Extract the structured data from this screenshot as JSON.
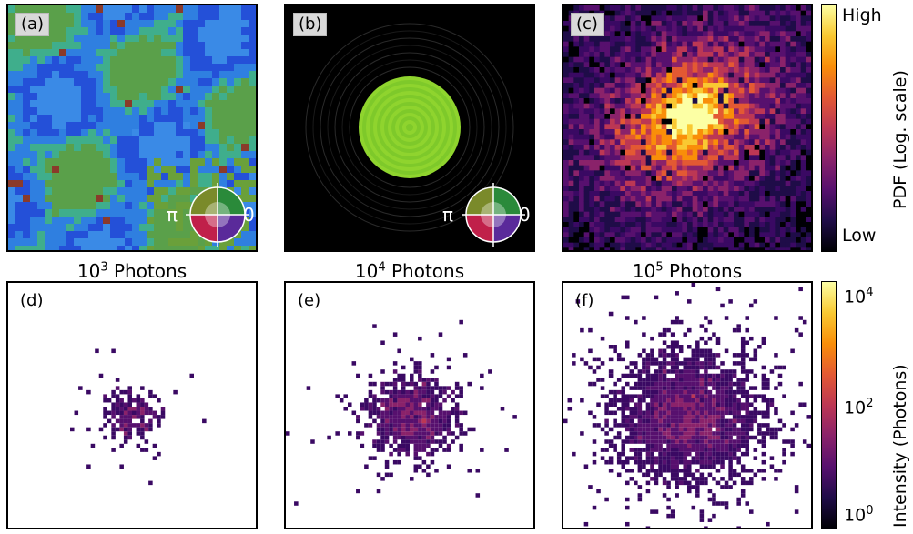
{
  "panels": {
    "a": {
      "label": "(a)"
    },
    "b": {
      "label": "(b)"
    },
    "c": {
      "label": "(c)"
    },
    "d": {
      "label": "(d)"
    },
    "e": {
      "label": "(e)"
    },
    "f": {
      "label": "(f)"
    }
  },
  "phase_wheel": {
    "left_label": "π",
    "right_label": "0"
  },
  "captions": {
    "d": {
      "base": "10",
      "exp": "3",
      "text": "Photons"
    },
    "e": {
      "base": "10",
      "exp": "4",
      "text": "Photons"
    },
    "f": {
      "base": "10",
      "exp": "5",
      "text": "Photons"
    }
  },
  "colorbar_top": {
    "label": "PDF (Log. scale)",
    "high": "High",
    "low": "Low"
  },
  "colorbar_bottom": {
    "label": "Intensity (Photons)",
    "ticks": [
      {
        "base": "10",
        "exp": "4",
        "value": 10000
      },
      {
        "base": "10",
        "exp": "2",
        "value": 100
      },
      {
        "base": "10",
        "exp": "0",
        "value": 1
      }
    ]
  },
  "chart_data": [
    {
      "type": "heatmap",
      "panel": "a",
      "description_values": "object phase/amplitude map",
      "colormap": "hsv-complex"
    },
    {
      "type": "heatmap",
      "panel": "b",
      "description_values": "probe (circular aperture)",
      "colormap": "hsv-complex"
    },
    {
      "type": "heatmap",
      "panel": "c",
      "description_values": "diffraction PDF",
      "colormap": "inferno-log"
    },
    {
      "type": "heatmap",
      "panel": "d",
      "photons": 1000,
      "colormap": "inferno-log"
    },
    {
      "type": "heatmap",
      "panel": "e",
      "photons": 10000,
      "colormap": "inferno-log"
    },
    {
      "type": "heatmap",
      "panel": "f",
      "photons": 100000,
      "colormap": "inferno-log"
    }
  ]
}
